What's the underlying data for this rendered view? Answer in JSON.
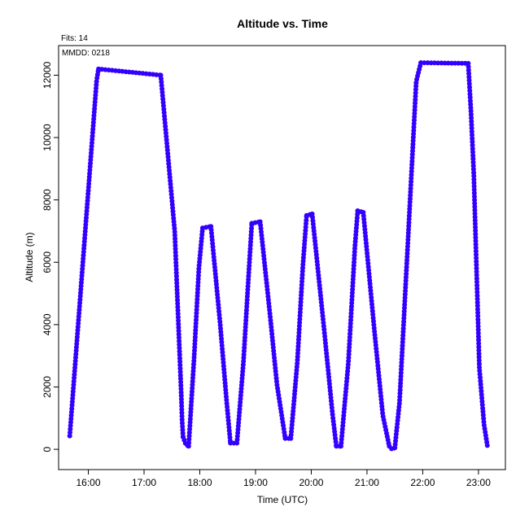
{
  "chart_data": {
    "type": "scatter",
    "title": "Altitude  vs. Time",
    "xlabel": "Time (UTC)",
    "ylabel": "Altitude (m)",
    "note_fits": "Fits: 14",
    "note_mmdd": "MMDD: 0218",
    "marker_color": "#3300ff",
    "xlim": [
      "15:28",
      "23:29"
    ],
    "ylim": [
      -650,
      12950
    ],
    "x_ticks": [
      "16:00",
      "17:00",
      "18:00",
      "19:00",
      "20:00",
      "21:00",
      "22:00",
      "23:00"
    ],
    "y_ticks": [
      0,
      2000,
      4000,
      6000,
      8000,
      10000,
      12000
    ],
    "y_tick_labels": [
      "0",
      "2000",
      "4000",
      "6000",
      "8000",
      "10000",
      "12000"
    ],
    "grid": false,
    "segments": [
      [
        [
          "15:40",
          430
        ],
        [
          "16:09",
          11850
        ],
        [
          "16:11",
          12200
        ]
      ],
      [
        [
          "16:11",
          12200
        ],
        [
          "17:18",
          12000
        ]
      ],
      [
        [
          "17:18",
          12000
        ],
        [
          "17:33",
          7000
        ],
        [
          "17:40",
          1800
        ],
        [
          "17:41",
          900
        ],
        [
          "17:42",
          400
        ]
      ],
      [
        [
          "17:42",
          400
        ],
        [
          "17:45",
          150
        ],
        [
          "17:48",
          100
        ]
      ],
      [
        [
          "17:48",
          100
        ],
        [
          "17:54",
          3000
        ],
        [
          "17:59",
          5800
        ],
        [
          "18:03",
          7100
        ]
      ],
      [
        [
          "18:03",
          7100
        ],
        [
          "18:12",
          7150
        ]
      ],
      [
        [
          "18:12",
          7150
        ],
        [
          "18:22",
          4000
        ],
        [
          "18:29",
          1500
        ],
        [
          "18:33",
          200
        ]
      ],
      [
        [
          "18:33",
          200
        ],
        [
          "18:40",
          200
        ]
      ],
      [
        [
          "18:40",
          200
        ],
        [
          "18:47",
          2800
        ],
        [
          "18:53",
          5800
        ],
        [
          "18:56",
          7250
        ]
      ],
      [
        [
          "18:56",
          7250
        ],
        [
          "19:05",
          7300
        ]
      ],
      [
        [
          "19:05",
          7300
        ],
        [
          "19:16",
          4200
        ],
        [
          "19:23",
          2100
        ],
        [
          "19:32",
          350
        ]
      ],
      [
        [
          "19:32",
          350
        ],
        [
          "19:38",
          350
        ]
      ],
      [
        [
          "19:38",
          350
        ],
        [
          "19:45",
          2800
        ],
        [
          "19:51",
          5900
        ],
        [
          "19:55",
          7500
        ]
      ],
      [
        [
          "19:55",
          7500
        ],
        [
          "20:01",
          7550
        ]
      ],
      [
        [
          "20:01",
          7550
        ],
        [
          "20:14",
          3800
        ],
        [
          "20:23",
          1100
        ],
        [
          "20:27",
          100
        ]
      ],
      [
        [
          "20:27",
          100
        ],
        [
          "20:32",
          100
        ]
      ],
      [
        [
          "20:32",
          100
        ],
        [
          "20:40",
          2800
        ],
        [
          "20:47",
          6500
        ],
        [
          "20:50",
          7650
        ]
      ],
      [
        [
          "20:50",
          7650
        ],
        [
          "20:56",
          7600
        ]
      ],
      [
        [
          "20:56",
          7600
        ],
        [
          "21:08",
          3800
        ],
        [
          "21:17",
          1100
        ],
        [
          "21:24",
          100
        ]
      ],
      [
        [
          "21:24",
          100
        ],
        [
          "21:27",
          0
        ],
        [
          "21:30",
          50
        ]
      ],
      [
        [
          "21:30",
          50
        ],
        [
          "21:35",
          1500
        ],
        [
          "21:45",
          7200
        ],
        [
          "21:53",
          11800
        ],
        [
          "21:58",
          12400
        ]
      ],
      [
        [
          "21:58",
          12400
        ],
        [
          "22:49",
          12380
        ]
      ],
      [
        [
          "22:49",
          12380
        ],
        [
          "22:52",
          10800
        ],
        [
          "22:55",
          8800
        ],
        [
          "23:01",
          2600
        ],
        [
          "23:06",
          800
        ],
        [
          "23:10",
          30
        ]
      ]
    ]
  }
}
